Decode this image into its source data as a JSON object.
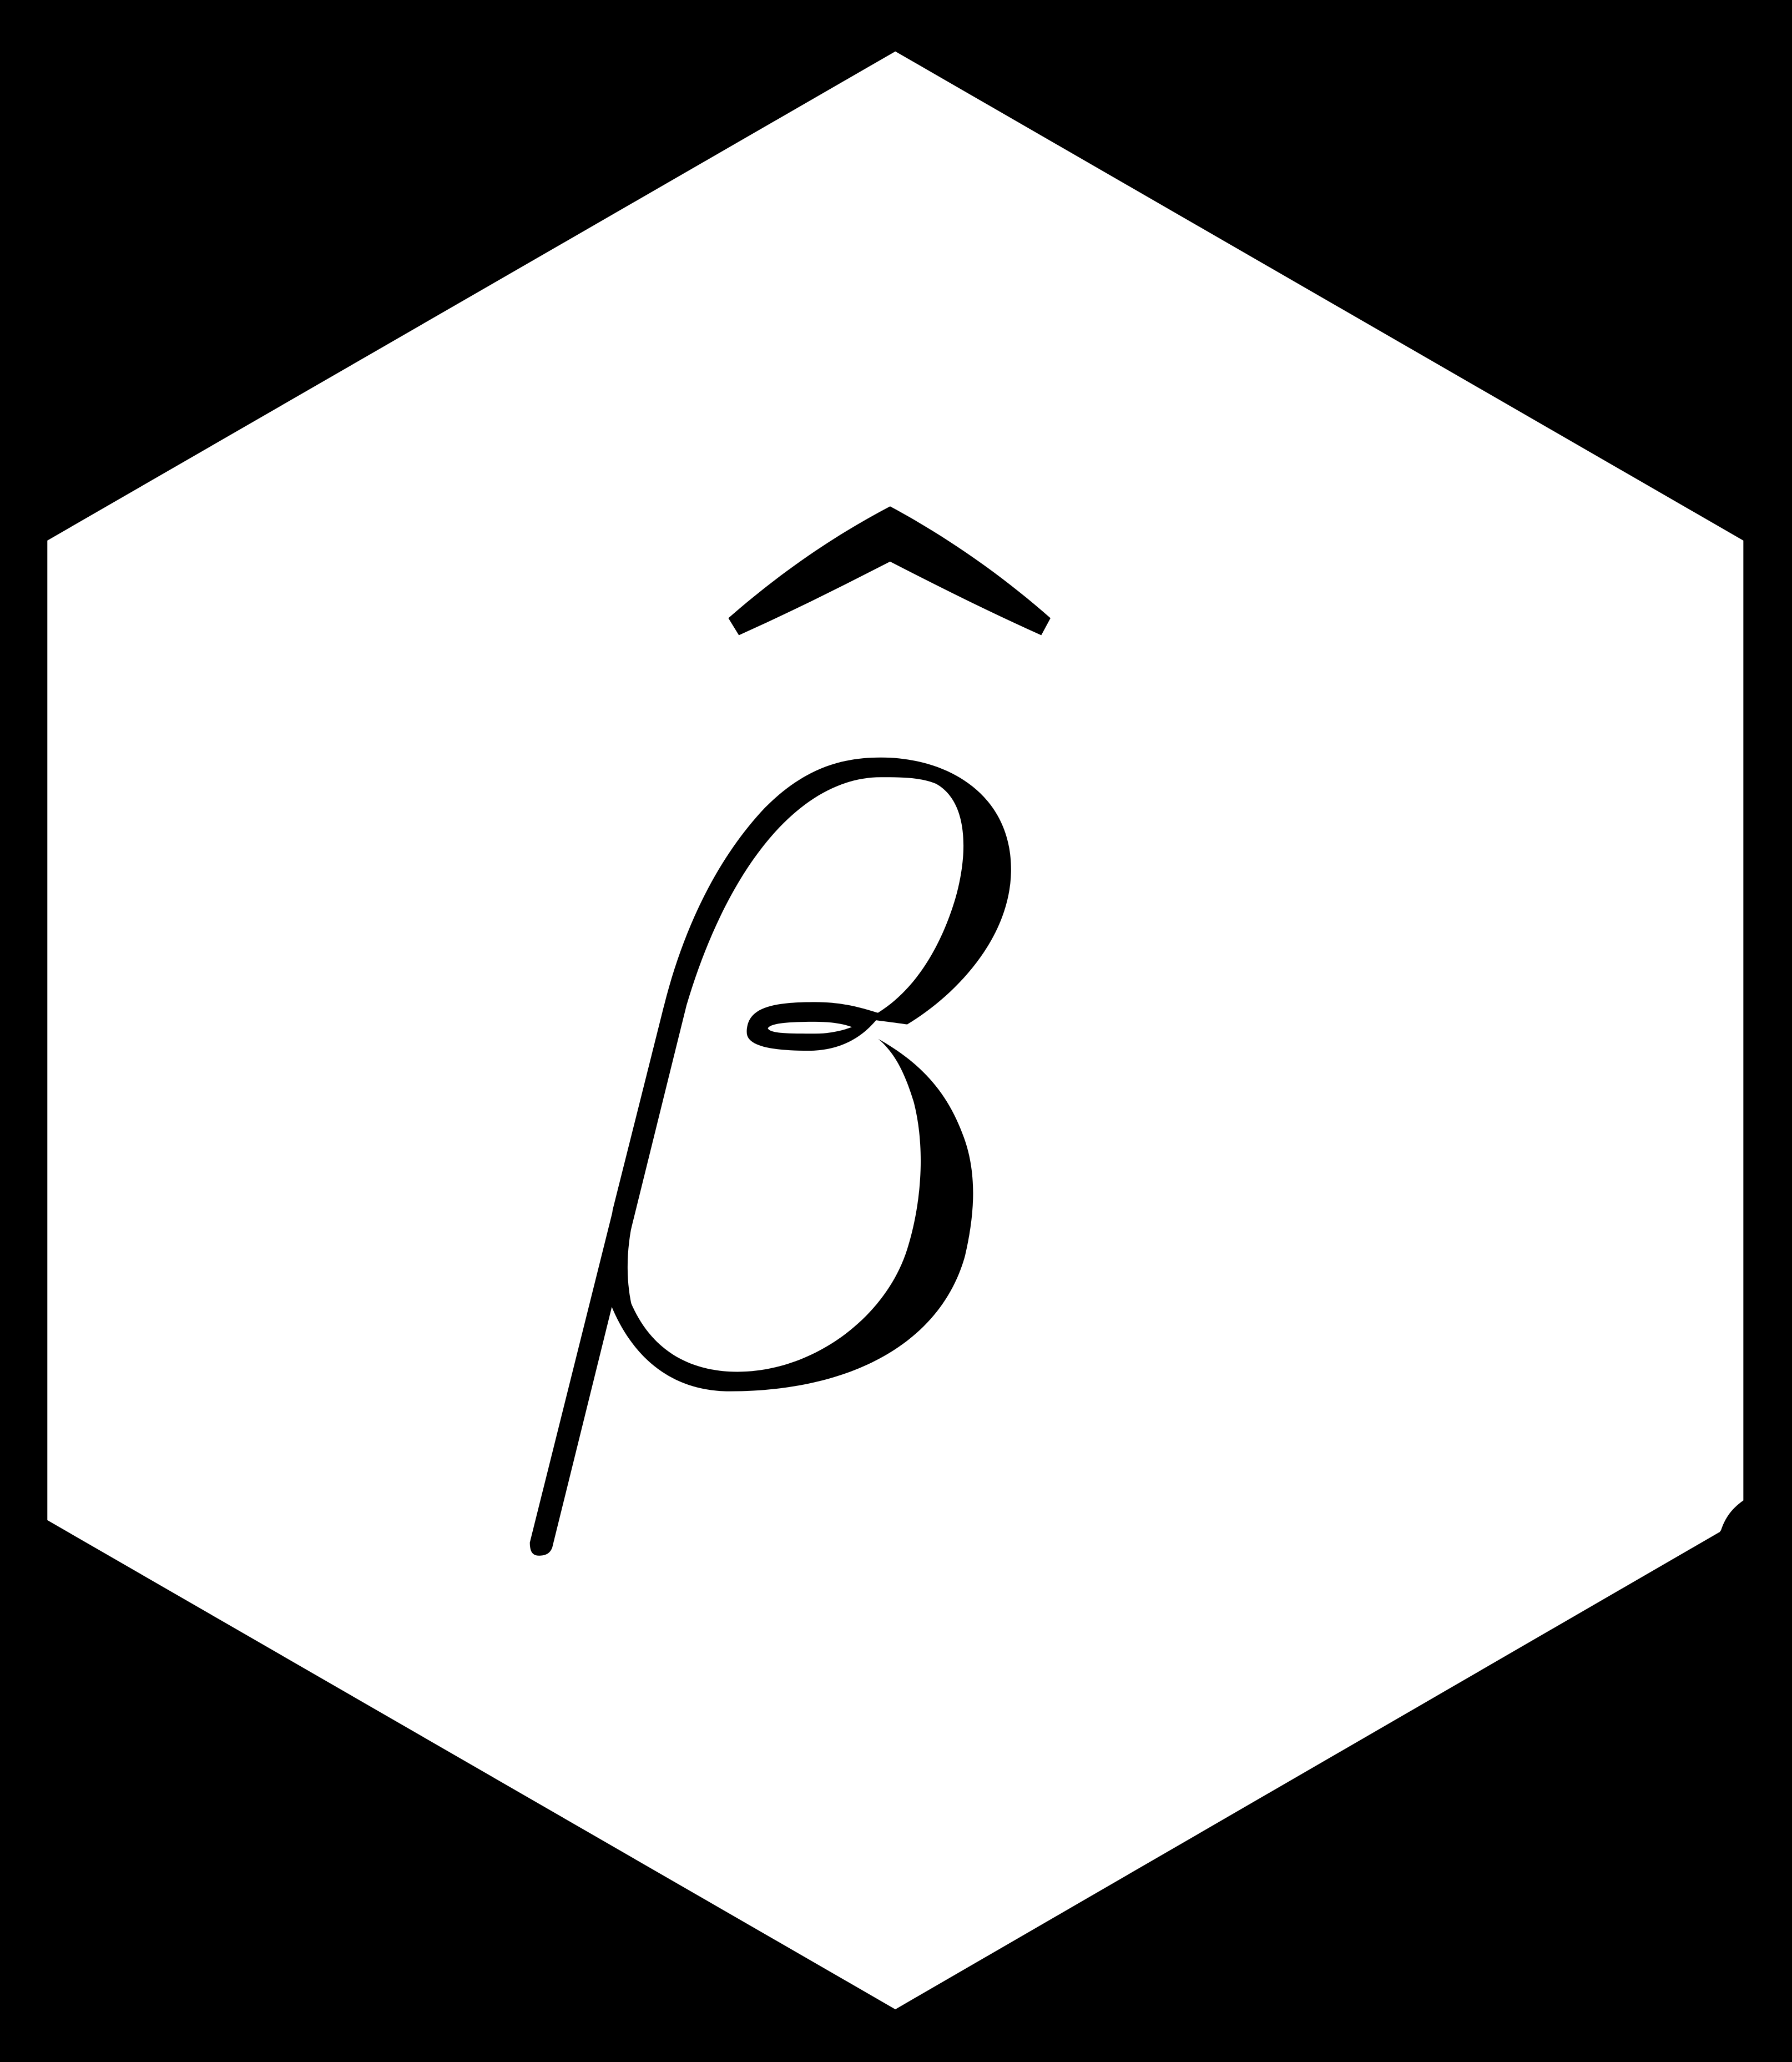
{
  "logo": {
    "symbol_text": "β̂",
    "symbol_name": "beta-hat",
    "background_color": "#000000",
    "hexagon_fill": "#FFFFFF",
    "glyph_color": "#000000"
  }
}
